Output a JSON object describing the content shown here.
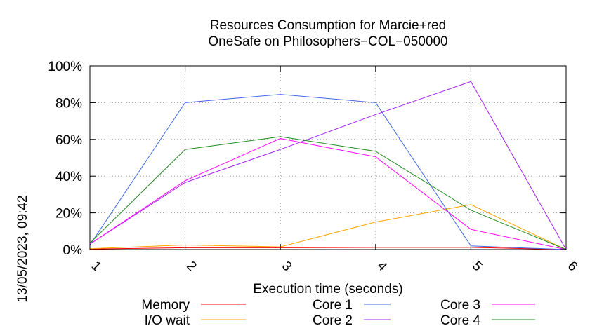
{
  "side_label": "13/05/2023, 09:42",
  "chart_data": {
    "type": "line",
    "title_lines": [
      "Resources Consumption for Marcie+red",
      "OneSafe on Philosophers−COL−050000"
    ],
    "xlabel": "Execution time (seconds)",
    "ylabel": "",
    "x": [
      1,
      2,
      3,
      4,
      5,
      6
    ],
    "x_tick_labels": [
      "1",
      "2",
      "3",
      "4",
      "5",
      "6"
    ],
    "xlim": [
      1,
      6
    ],
    "ylim": [
      0,
      100
    ],
    "y_ticks": [
      0,
      20,
      40,
      60,
      80,
      100
    ],
    "y_tick_labels": [
      "0%",
      "20%",
      "40%",
      "60%",
      "80%",
      "100%"
    ],
    "grid": true,
    "legend_position": "bottom",
    "series": [
      {
        "name": "Memory",
        "color": "#ff0000",
        "values": [
          0.3,
          1.0,
          1.0,
          1.2,
          1.2,
          0
        ]
      },
      {
        "name": "I/O wait",
        "color": "#ffa500",
        "values": [
          0.5,
          2.5,
          1.5,
          15.0,
          24.5,
          0
        ]
      },
      {
        "name": "Core 1",
        "color": "#4169e1",
        "values": [
          2.5,
          80.0,
          84.5,
          80.0,
          2.0,
          0
        ]
      },
      {
        "name": "Core 2",
        "color": "#a020f0",
        "values": [
          3.0,
          36.5,
          54.5,
          73.5,
          91.5,
          0
        ]
      },
      {
        "name": "Core 3",
        "color": "#ff00ff",
        "values": [
          3.0,
          37.5,
          60.5,
          50.5,
          11.0,
          0
        ]
      },
      {
        "name": "Core 4",
        "color": "#228b22",
        "values": [
          3.5,
          54.5,
          61.5,
          53.5,
          21.5,
          0
        ]
      }
    ]
  }
}
